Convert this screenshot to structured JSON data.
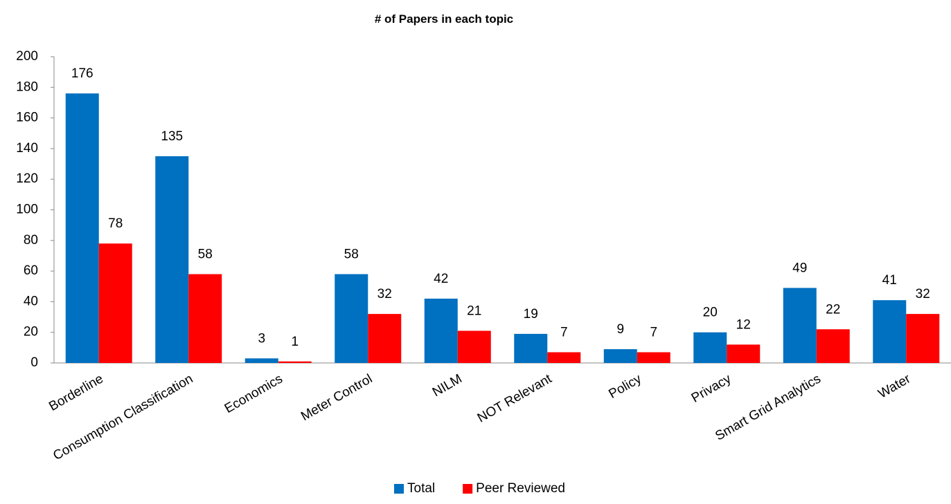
{
  "chart_data": {
    "type": "bar",
    "title": "# of Papers in each topic",
    "categories": [
      "Borderline",
      "Consumption Classification",
      "Economics",
      "Meter Control",
      "NILM",
      "NOT Relevant",
      "Policy",
      "Privacy",
      "Smart Grid Analytics",
      "Water"
    ],
    "series": [
      {
        "name": "Total",
        "color": "#0070c0",
        "values": [
          176,
          135,
          3,
          58,
          42,
          19,
          9,
          20,
          49,
          41
        ]
      },
      {
        "name": "Peer Reviewed",
        "color": "#ff0000",
        "values": [
          78,
          58,
          1,
          32,
          21,
          7,
          7,
          12,
          22,
          32
        ]
      }
    ],
    "ylim": [
      0,
      200
    ],
    "yticks": [
      0,
      20,
      40,
      60,
      80,
      100,
      120,
      140,
      160,
      180,
      200
    ],
    "grid": false,
    "legend": "bottom"
  }
}
